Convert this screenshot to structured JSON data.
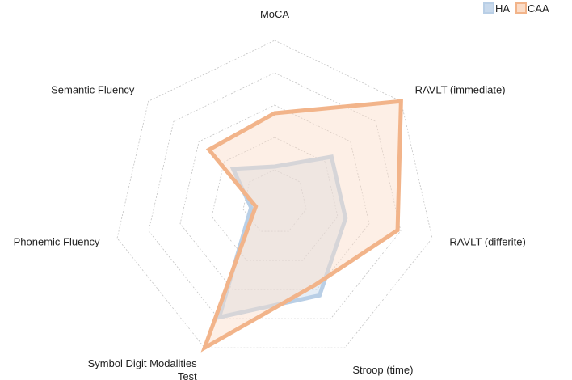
{
  "chart_data": {
    "type": "radar",
    "title": "",
    "axes": [
      "MoCA",
      "RAVLT (immediate)",
      "RAVLT (differite)",
      "Stroop (time)",
      "Symbol Digit Modalities Test",
      "Phonemic Fluency",
      "Semantic Fluency"
    ],
    "axis_label_lines": [
      [
        "MoCA"
      ],
      [
        "RAVLT (immediate)"
      ],
      [
        "RAVLT (differite)"
      ],
      [
        "Stroop (time)"
      ],
      [
        "Symbol Digit Modalities",
        "Test"
      ],
      [
        "Phonemic Fluency"
      ],
      [
        "Semantic Fluency"
      ]
    ],
    "rings": 5,
    "range": [
      0,
      1
    ],
    "series": [
      {
        "name": "HA",
        "values": [
          0.22,
          0.45,
          0.45,
          0.64,
          0.79,
          0.15,
          0.33
        ],
        "stroke": "#b9cfe6",
        "fill": "#c8d9ec"
      },
      {
        "name": "CAA",
        "values": [
          0.55,
          1.0,
          0.78,
          0.57,
          1.0,
          0.12,
          0.52
        ],
        "stroke": "#f2b48a",
        "fill": "#fbdcc7"
      }
    ],
    "legend_position": "top-right",
    "grid": true
  }
}
